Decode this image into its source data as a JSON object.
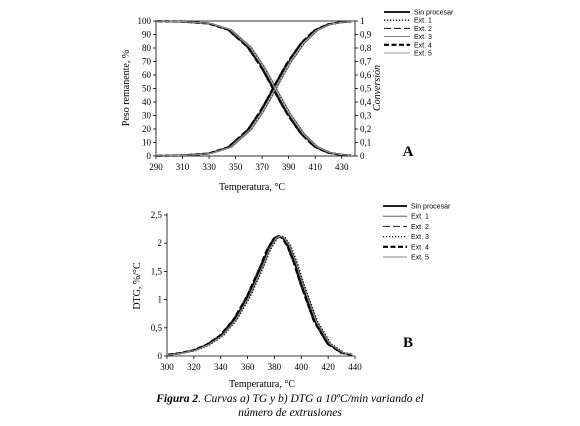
{
  "figure_caption": {
    "label": "Figura 2",
    "line1": ". Curvas a) TG y b) DTG a 10ºC/min variando el",
    "line2": "número de extrusiones"
  },
  "chart_data": [
    {
      "id": "A",
      "type": "line",
      "panel_label": "A",
      "xlabel": "Temperatura,  °C",
      "ylabel": "Peso remanente, %",
      "y2label": "Conversión",
      "xlim": [
        290,
        440
      ],
      "ylim": [
        0,
        100
      ],
      "y2lim": [
        0,
        1
      ],
      "xticks": [
        "290",
        "310",
        "330",
        "350",
        "370",
        "390",
        "410",
        "430"
      ],
      "yticks": [
        "0",
        "10",
        "20",
        "30",
        "40",
        "50",
        "60",
        "70",
        "80",
        "90",
        "100"
      ],
      "y2ticks": [
        "0",
        "0,1",
        "0,2",
        "0,3",
        "0,4",
        "0,5",
        "0,6",
        "0,7",
        "0,8",
        "0,9",
        "1"
      ],
      "legend_position": "top-right",
      "grid": false,
      "series": [
        {
          "name": "Sin procesar",
          "style": "solid-bold",
          "color": "#000000",
          "shift": 0
        },
        {
          "name": "Ext. 1",
          "style": "dotted",
          "color": "#000000",
          "shift": 1.2
        },
        {
          "name": "Ext. 2",
          "style": "long-dash",
          "color": "#222222",
          "shift": -1.2
        },
        {
          "name": "Ext. 3",
          "style": "solid-thin",
          "color": "#555555",
          "shift": 2.0
        },
        {
          "name": "Ext. 4",
          "style": "dash-bold",
          "color": "#000000",
          "shift": -0.6
        },
        {
          "name": "Ext. 5",
          "style": "solid-gray",
          "color": "#999999",
          "shift": 0.8
        }
      ],
      "tg_points": [
        [
          290,
          99.9
        ],
        [
          310,
          99.6
        ],
        [
          330,
          98.2
        ],
        [
          345,
          93.6
        ],
        [
          360,
          80.5
        ],
        [
          370,
          65.8
        ],
        [
          375,
          57.0
        ],
        [
          380,
          48.0
        ],
        [
          385,
          39.0
        ],
        [
          390,
          30.5
        ],
        [
          400,
          16.5
        ],
        [
          410,
          7.0
        ],
        [
          420,
          2.5
        ],
        [
          430,
          0.9
        ],
        [
          435,
          0.5
        ]
      ],
      "conversion_points": [
        [
          290,
          0.001
        ],
        [
          310,
          0.004
        ],
        [
          330,
          0.018
        ],
        [
          345,
          0.064
        ],
        [
          360,
          0.195
        ],
        [
          370,
          0.342
        ],
        [
          375,
          0.43
        ],
        [
          380,
          0.52
        ],
        [
          385,
          0.61
        ],
        [
          390,
          0.695
        ],
        [
          400,
          0.835
        ],
        [
          410,
          0.93
        ],
        [
          420,
          0.975
        ],
        [
          430,
          0.991
        ],
        [
          435,
          0.995
        ]
      ]
    },
    {
      "id": "B",
      "type": "line",
      "panel_label": "B",
      "xlabel": "Temperatura,  °C",
      "ylabel": "DTG, %/°C",
      "xlim": [
        300,
        440
      ],
      "ylim": [
        0,
        2.5
      ],
      "xticks": [
        "300",
        "320",
        "340",
        "360",
        "380",
        "400",
        "420",
        "440"
      ],
      "yticks": [
        "0",
        "0,5",
        "1",
        "1,5",
        "2",
        "2,5"
      ],
      "legend_position": "top-right",
      "grid": false,
      "series": [
        {
          "name": "Sin procesar",
          "style": "solid-bold",
          "color": "#000000",
          "shift": 0
        },
        {
          "name": "Ext. 1",
          "style": "solid-thin",
          "color": "#444444",
          "shift": 1.5
        },
        {
          "name": "Ext. 2",
          "style": "long-dash",
          "color": "#333333",
          "shift": -1.0
        },
        {
          "name": "Ext. 3",
          "style": "dotted",
          "color": "#000000",
          "shift": 2.0
        },
        {
          "name": "Ext. 4",
          "style": "dash-bold",
          "color": "#000000",
          "shift": -0.5
        },
        {
          "name": "Ext. 5",
          "style": "solid-gray",
          "color": "#888888",
          "shift": 1.0
        }
      ],
      "dtg_points": [
        [
          300,
          0.02
        ],
        [
          310,
          0.05
        ],
        [
          320,
          0.1
        ],
        [
          330,
          0.2
        ],
        [
          340,
          0.36
        ],
        [
          350,
          0.64
        ],
        [
          360,
          1.05
        ],
        [
          370,
          1.58
        ],
        [
          375,
          1.88
        ],
        [
          380,
          2.08
        ],
        [
          383,
          2.13
        ],
        [
          386,
          2.1
        ],
        [
          390,
          1.96
        ],
        [
          395,
          1.66
        ],
        [
          400,
          1.28
        ],
        [
          410,
          0.62
        ],
        [
          420,
          0.22
        ],
        [
          430,
          0.06
        ],
        [
          438,
          0.02
        ]
      ]
    }
  ]
}
